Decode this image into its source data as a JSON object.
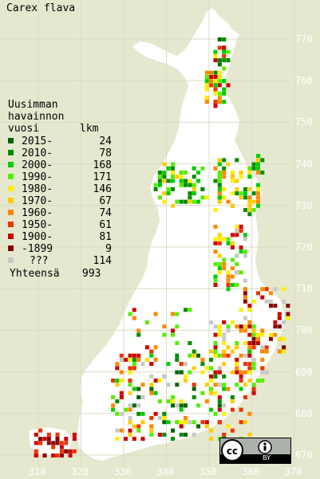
{
  "title": "Carex flava",
  "legend": {
    "heading": [
      "Uusimman",
      "havainnon",
      "vuosi"
    ],
    "count_header": "lkm",
    "rows": [
      {
        "label": "2015-",
        "count": "24",
        "color": "#006400"
      },
      {
        "label": "2010-",
        "count": "78",
        "color": "#008c00"
      },
      {
        "label": "2000-",
        "count": "168",
        "color": "#00cc00"
      },
      {
        "label": "1990-",
        "count": "171",
        "color": "#55ee00"
      },
      {
        "label": "1980-",
        "count": "146",
        "color": "#ffee00"
      },
      {
        "label": "1970-",
        "count": "67",
        "color": "#ffcc00"
      },
      {
        "label": "1960-",
        "count": "74",
        "color": "#ff8800"
      },
      {
        "label": "1950-",
        "count": "61",
        "color": "#ee3300"
      },
      {
        "label": "1900-",
        "count": "81",
        "color": "#cc0000"
      },
      {
        "label": "-1899",
        "count": "9",
        "color": "#880000"
      },
      {
        "label": "???",
        "count": "114",
        "color": "#c8c8c8"
      }
    ],
    "total_label": "Yhteensä",
    "total": "993"
  },
  "grid_y_labels": [
    "770",
    "760",
    "750",
    "740",
    "730",
    "720",
    "710",
    "700",
    "690",
    "680",
    "670"
  ],
  "grid_x_labels": [
    "310",
    "320",
    "330",
    "340",
    "350",
    "360",
    "370"
  ],
  "license": {
    "label": "BY",
    "icons": [
      "cc-icon",
      "attribution-icon"
    ]
  }
}
